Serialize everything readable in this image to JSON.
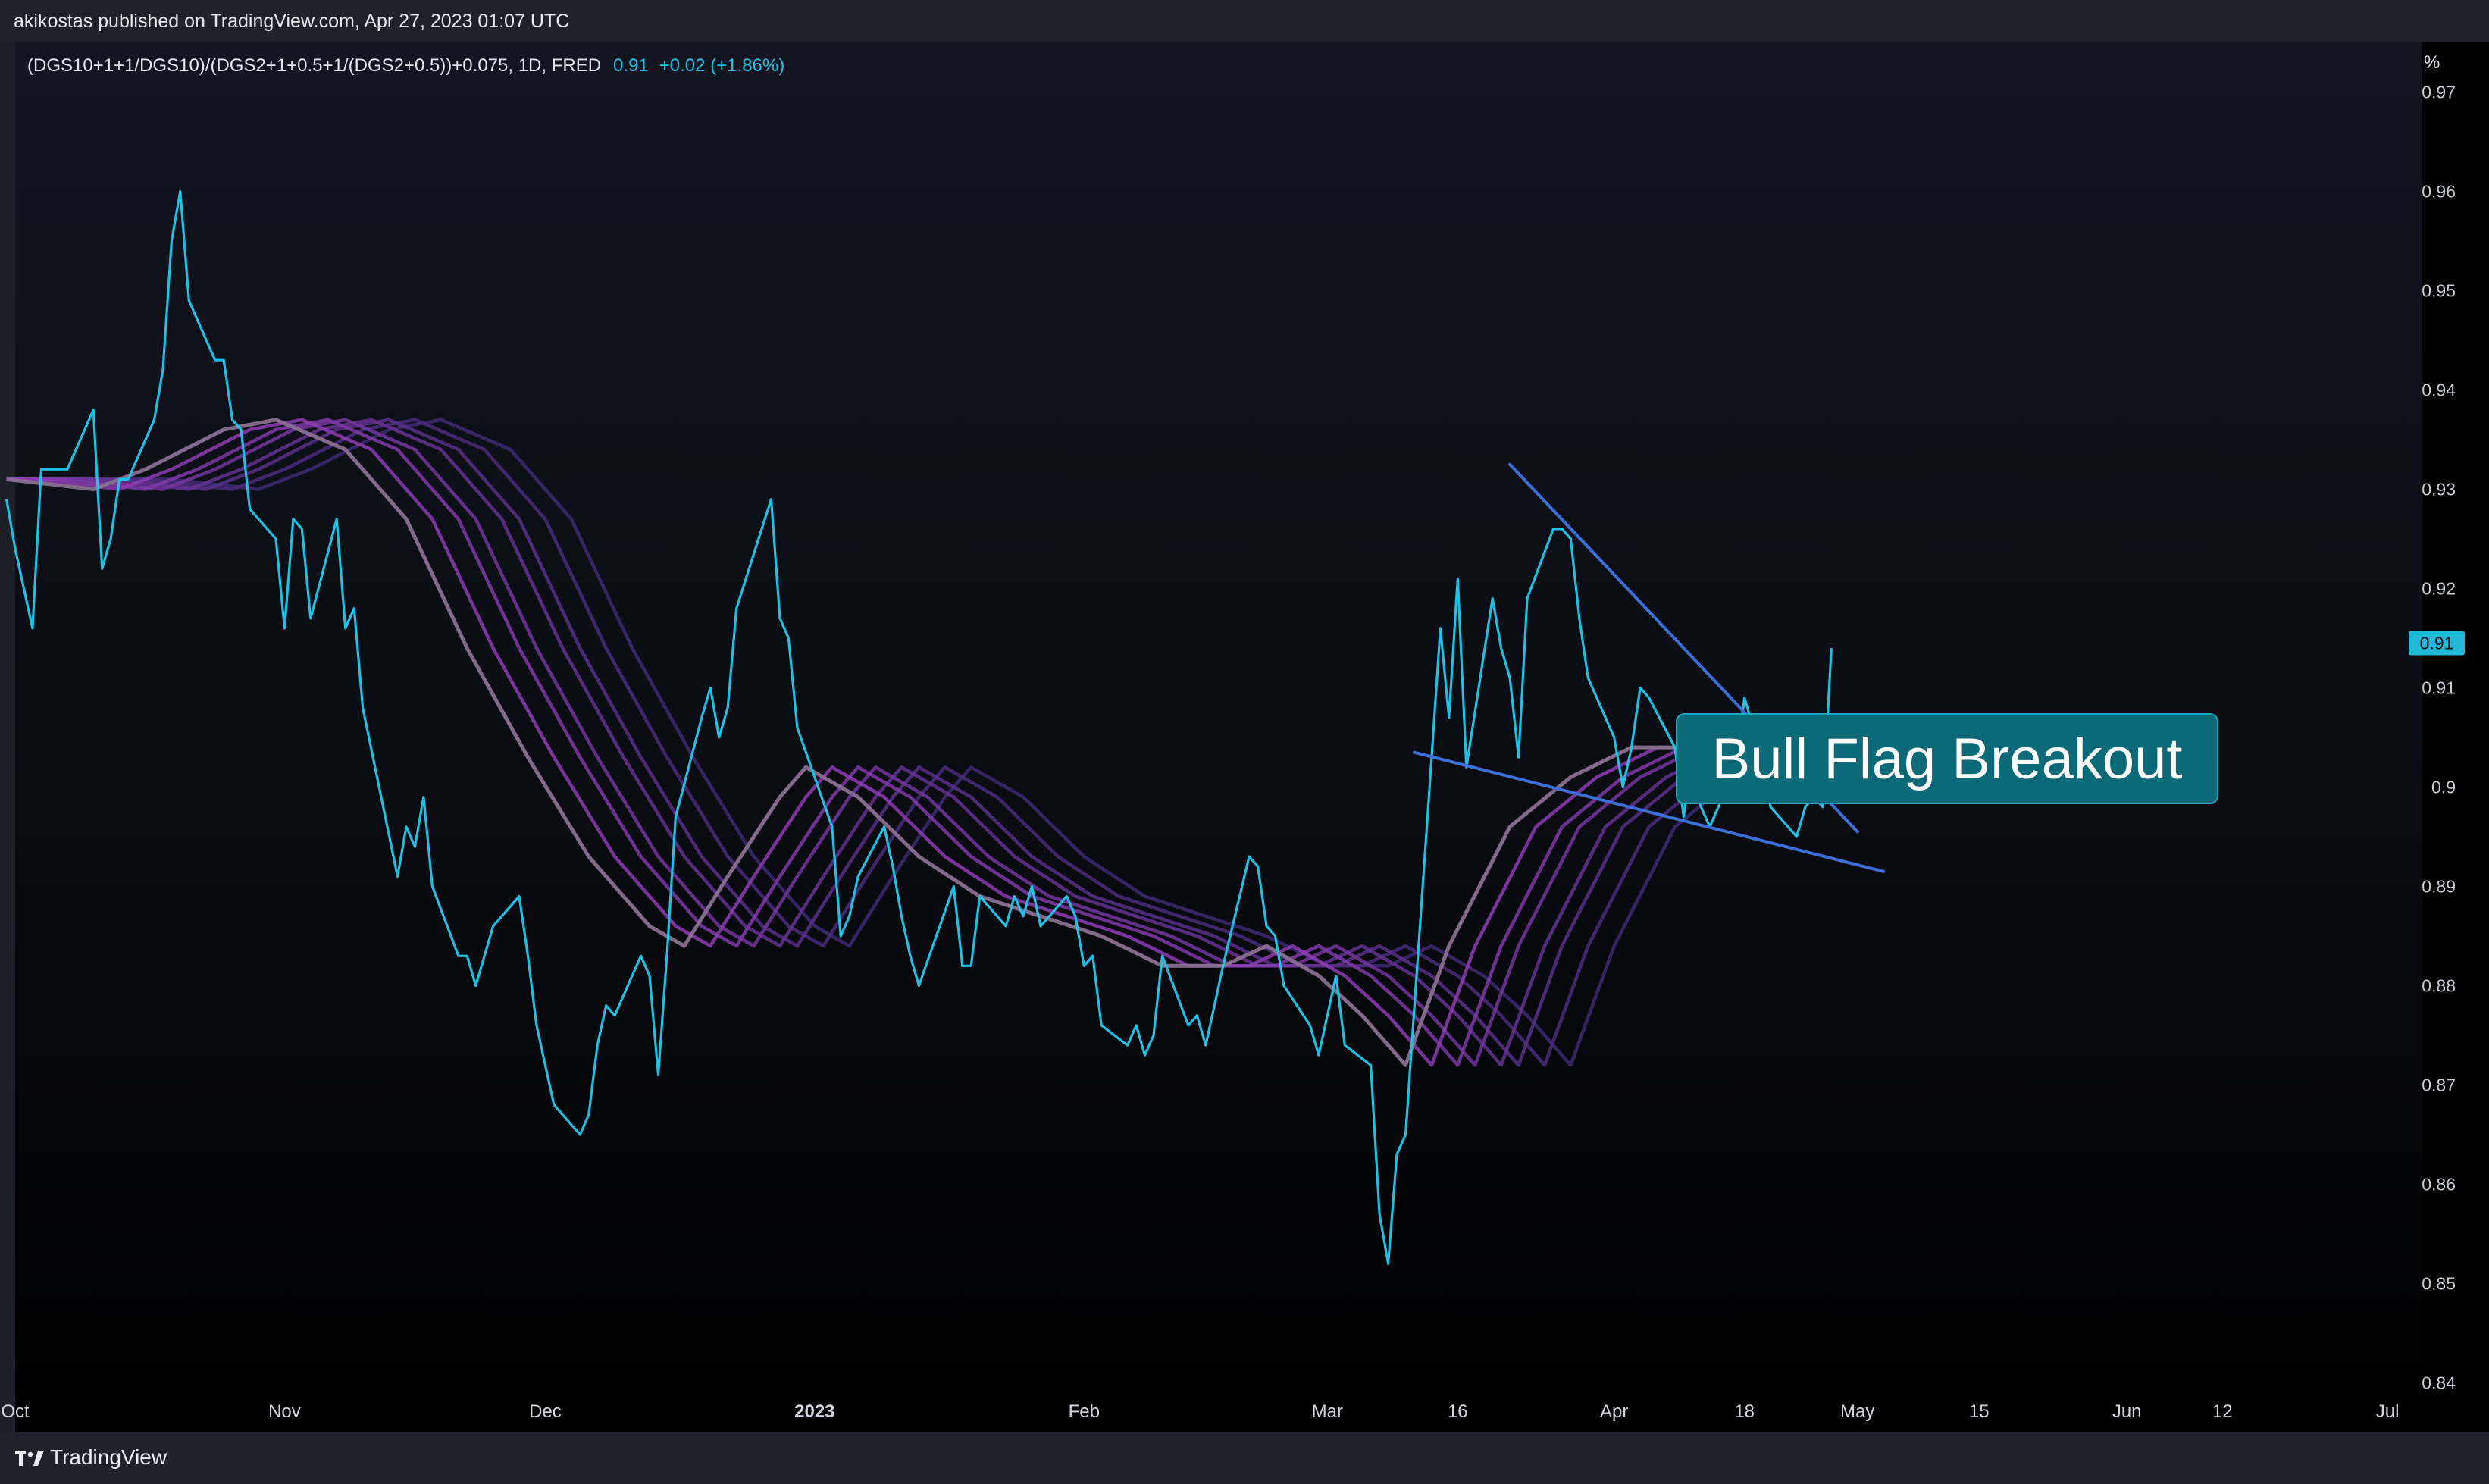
{
  "header": {
    "published": "akikostas published on TradingView.com, Apr 27, 2023 01:07 UTC"
  },
  "footer": {
    "brand": "TradingView",
    "logo_icon": "tradingview-logo-icon"
  },
  "colors": {
    "price_line": "#1ec1e6",
    "ribbon_outer": "#3d2a72",
    "ribbon_inner": "#9b3fbf",
    "ribbon_core": "#8a7090",
    "trendline": "#3d6fd8",
    "annotation_bg": "#0b6978",
    "annotation_border": "#1aa7bd",
    "price_badge": "#22b8d8"
  },
  "chart_data": {
    "type": "line",
    "symbol_line": {
      "symbol": "(DGS10+1+1/DGS10)/(DGS2+1+0.5+1/(DGS2+0.5))+0.075, 1D, FRED",
      "last": "0.91",
      "change": "+0.02 (+1.86%)"
    },
    "y_unit": "%",
    "ylim": [
      0.835,
      0.975
    ],
    "y_ticks": [
      "0.97",
      "0.96",
      "0.95",
      "0.94",
      "0.93",
      "0.92",
      "0.91",
      "0.9",
      "0.89",
      "0.88",
      "0.87",
      "0.86",
      "0.85",
      "0.84"
    ],
    "y_tick_values": [
      0.97,
      0.96,
      0.95,
      0.94,
      0.93,
      0.92,
      0.91,
      0.9,
      0.89,
      0.88,
      0.87,
      0.86,
      0.85,
      0.84
    ],
    "last_value_label": "0.91",
    "last_value": 0.9145,
    "x_range": [
      "2022-10-01",
      "2023-07-05"
    ],
    "x_ticks": [
      {
        "label": "Oct",
        "date": "2022-10-01",
        "bold": false
      },
      {
        "label": "Nov",
        "date": "2022-11-01",
        "bold": false
      },
      {
        "label": "Dec",
        "date": "2022-12-01",
        "bold": false
      },
      {
        "label": "2023",
        "date": "2023-01-01",
        "bold": true
      },
      {
        "label": "Feb",
        "date": "2023-02-01",
        "bold": false
      },
      {
        "label": "Mar",
        "date": "2023-03-01",
        "bold": false
      },
      {
        "label": "16",
        "date": "2023-03-16",
        "bold": false
      },
      {
        "label": "Apr",
        "date": "2023-04-03",
        "bold": false
      },
      {
        "label": "18",
        "date": "2023-04-18",
        "bold": false
      },
      {
        "label": "May",
        "date": "2023-05-01",
        "bold": false
      },
      {
        "label": "15",
        "date": "2023-05-15",
        "bold": false
      },
      {
        "label": "Jun",
        "date": "2023-06-01",
        "bold": false
      },
      {
        "label": "12",
        "date": "2023-06-12",
        "bold": false
      },
      {
        "label": "Jul",
        "date": "2023-07-01",
        "bold": false
      }
    ],
    "price_series": [
      [
        "2022-09-30",
        0.929
      ],
      [
        "2022-10-01",
        0.924
      ],
      [
        "2022-10-03",
        0.916
      ],
      [
        "2022-10-04",
        0.932
      ],
      [
        "2022-10-06",
        0.932
      ],
      [
        "2022-10-07",
        0.932
      ],
      [
        "2022-10-10",
        0.938
      ],
      [
        "2022-10-11",
        0.922
      ],
      [
        "2022-10-12",
        0.925
      ],
      [
        "2022-10-13",
        0.931
      ],
      [
        "2022-10-14",
        0.931
      ],
      [
        "2022-10-17",
        0.937
      ],
      [
        "2022-10-18",
        0.942
      ],
      [
        "2022-10-19",
        0.955
      ],
      [
        "2022-10-20",
        0.96
      ],
      [
        "2022-10-21",
        0.949
      ],
      [
        "2022-10-24",
        0.943
      ],
      [
        "2022-10-25",
        0.943
      ],
      [
        "2022-10-26",
        0.937
      ],
      [
        "2022-10-27",
        0.936
      ],
      [
        "2022-10-28",
        0.928
      ],
      [
        "2022-10-31",
        0.925
      ],
      [
        "2022-11-01",
        0.916
      ],
      [
        "2022-11-02",
        0.927
      ],
      [
        "2022-11-03",
        0.926
      ],
      [
        "2022-11-04",
        0.917
      ],
      [
        "2022-11-07",
        0.927
      ],
      [
        "2022-11-08",
        0.916
      ],
      [
        "2022-11-09",
        0.918
      ],
      [
        "2022-11-10",
        0.908
      ],
      [
        "2022-11-14",
        0.891
      ],
      [
        "2022-11-15",
        0.896
      ],
      [
        "2022-11-16",
        0.894
      ],
      [
        "2022-11-17",
        0.899
      ],
      [
        "2022-11-18",
        0.89
      ],
      [
        "2022-11-21",
        0.883
      ],
      [
        "2022-11-22",
        0.883
      ],
      [
        "2022-11-23",
        0.88
      ],
      [
        "2022-11-25",
        0.886
      ],
      [
        "2022-11-28",
        0.889
      ],
      [
        "2022-11-29",
        0.883
      ],
      [
        "2022-11-30",
        0.876
      ],
      [
        "2022-12-01",
        0.872
      ],
      [
        "2022-12-02",
        0.868
      ],
      [
        "2022-12-05",
        0.865
      ],
      [
        "2022-12-06",
        0.867
      ],
      [
        "2022-12-07",
        0.874
      ],
      [
        "2022-12-08",
        0.878
      ],
      [
        "2022-12-09",
        0.877
      ],
      [
        "2022-12-12",
        0.883
      ],
      [
        "2022-12-13",
        0.881
      ],
      [
        "2022-12-14",
        0.871
      ],
      [
        "2022-12-15",
        0.883
      ],
      [
        "2022-12-16",
        0.897
      ],
      [
        "2022-12-19",
        0.907
      ],
      [
        "2022-12-20",
        0.91
      ],
      [
        "2022-12-21",
        0.905
      ],
      [
        "2022-12-22",
        0.908
      ],
      [
        "2022-12-23",
        0.918
      ],
      [
        "2022-12-27",
        0.929
      ],
      [
        "2022-12-28",
        0.917
      ],
      [
        "2022-12-29",
        0.915
      ],
      [
        "2022-12-30",
        0.906
      ],
      [
        "2023-01-03",
        0.896
      ],
      [
        "2023-01-04",
        0.885
      ],
      [
        "2023-01-05",
        0.887
      ],
      [
        "2023-01-06",
        0.891
      ],
      [
        "2023-01-09",
        0.896
      ],
      [
        "2023-01-10",
        0.892
      ],
      [
        "2023-01-11",
        0.887
      ],
      [
        "2023-01-12",
        0.883
      ],
      [
        "2023-01-13",
        0.88
      ],
      [
        "2023-01-17",
        0.89
      ],
      [
        "2023-01-18",
        0.882
      ],
      [
        "2023-01-19",
        0.882
      ],
      [
        "2023-01-20",
        0.889
      ],
      [
        "2023-01-23",
        0.886
      ],
      [
        "2023-01-24",
        0.889
      ],
      [
        "2023-01-25",
        0.887
      ],
      [
        "2023-01-26",
        0.89
      ],
      [
        "2023-01-27",
        0.886
      ],
      [
        "2023-01-30",
        0.889
      ],
      [
        "2023-01-31",
        0.887
      ],
      [
        "2023-02-01",
        0.882
      ],
      [
        "2023-02-02",
        0.883
      ],
      [
        "2023-02-03",
        0.876
      ],
      [
        "2023-02-06",
        0.874
      ],
      [
        "2023-02-07",
        0.876
      ],
      [
        "2023-02-08",
        0.873
      ],
      [
        "2023-02-09",
        0.875
      ],
      [
        "2023-02-10",
        0.883
      ],
      [
        "2023-02-13",
        0.876
      ],
      [
        "2023-02-14",
        0.877
      ],
      [
        "2023-02-15",
        0.874
      ],
      [
        "2023-02-16",
        0.878
      ],
      [
        "2023-02-17",
        0.882
      ],
      [
        "2023-02-20",
        0.893
      ],
      [
        "2023-02-21",
        0.892
      ],
      [
        "2023-02-22",
        0.886
      ],
      [
        "2023-02-23",
        0.885
      ],
      [
        "2023-02-24",
        0.88
      ],
      [
        "2023-02-27",
        0.876
      ],
      [
        "2023-02-28",
        0.873
      ],
      [
        "2023-03-01",
        0.877
      ],
      [
        "2023-03-02",
        0.881
      ],
      [
        "2023-03-03",
        0.874
      ],
      [
        "2023-03-06",
        0.872
      ],
      [
        "2023-03-07",
        0.857
      ],
      [
        "2023-03-08",
        0.852
      ],
      [
        "2023-03-09",
        0.863
      ],
      [
        "2023-03-10",
        0.865
      ],
      [
        "2023-03-13",
        0.903
      ],
      [
        "2023-03-14",
        0.916
      ],
      [
        "2023-03-15",
        0.907
      ],
      [
        "2023-03-16",
        0.921
      ],
      [
        "2023-03-17",
        0.902
      ],
      [
        "2023-03-20",
        0.919
      ],
      [
        "2023-03-21",
        0.914
      ],
      [
        "2023-03-22",
        0.911
      ],
      [
        "2023-03-23",
        0.903
      ],
      [
        "2023-03-24",
        0.919
      ],
      [
        "2023-03-27",
        0.926
      ],
      [
        "2023-03-28",
        0.926
      ],
      [
        "2023-03-29",
        0.925
      ],
      [
        "2023-03-30",
        0.917
      ],
      [
        "2023-03-31",
        0.911
      ],
      [
        "2023-04-03",
        0.905
      ],
      [
        "2023-04-04",
        0.9
      ],
      [
        "2023-04-05",
        0.904
      ],
      [
        "2023-04-06",
        0.91
      ],
      [
        "2023-04-07",
        0.909
      ],
      [
        "2023-04-10",
        0.904
      ],
      [
        "2023-04-11",
        0.897
      ],
      [
        "2023-04-12",
        0.903
      ],
      [
        "2023-04-13",
        0.898
      ],
      [
        "2023-04-14",
        0.896
      ],
      [
        "2023-04-17",
        0.902
      ],
      [
        "2023-04-18",
        0.909
      ],
      [
        "2023-04-19",
        0.906
      ],
      [
        "2023-04-20",
        0.903
      ],
      [
        "2023-04-21",
        0.898
      ],
      [
        "2023-04-24",
        0.895
      ],
      [
        "2023-04-25",
        0.898
      ],
      [
        "2023-04-26",
        0.899
      ],
      [
        "2023-04-27",
        0.898
      ],
      [
        "2023-04-28",
        0.914
      ]
    ],
    "ribbon": {
      "band_count": 8,
      "core": [
        [
          "2022-09-30",
          0.931
        ],
        [
          "2022-10-10",
          0.93
        ],
        [
          "2022-10-16",
          0.932
        ],
        [
          "2022-10-25",
          0.936
        ],
        [
          "2022-10-31",
          0.937
        ],
        [
          "2022-11-08",
          0.934
        ],
        [
          "2022-11-15",
          0.927
        ],
        [
          "2022-11-22",
          0.914
        ],
        [
          "2022-11-29",
          0.903
        ],
        [
          "2022-12-06",
          0.893
        ],
        [
          "2022-12-13",
          0.886
        ],
        [
          "2022-12-17",
          0.884
        ],
        [
          "2022-12-22",
          0.891
        ],
        [
          "2022-12-28",
          0.899
        ],
        [
          "2022-12-31",
          0.902
        ],
        [
          "2023-01-06",
          0.899
        ],
        [
          "2023-01-13",
          0.893
        ],
        [
          "2023-01-20",
          0.889
        ],
        [
          "2023-01-27",
          0.887
        ],
        [
          "2023-02-03",
          0.885
        ],
        [
          "2023-02-10",
          0.882
        ],
        [
          "2023-02-17",
          0.882
        ],
        [
          "2023-02-22",
          0.884
        ],
        [
          "2023-02-28",
          0.881
        ],
        [
          "2023-03-05",
          0.877
        ],
        [
          "2023-03-10",
          0.872
        ],
        [
          "2023-03-15",
          0.884
        ],
        [
          "2023-03-22",
          0.896
        ],
        [
          "2023-03-29",
          0.901
        ],
        [
          "2023-04-05",
          0.904
        ],
        [
          "2023-04-12",
          0.904
        ],
        [
          "2023-04-18",
          0.903
        ],
        [
          "2023-04-24",
          0.902
        ],
        [
          "2023-04-28",
          0.902
        ]
      ]
    },
    "trendlines": [
      {
        "name": "upper",
        "from": [
          "2023-03-22",
          0.9325
        ],
        "to": [
          "2023-05-01",
          0.8955
        ]
      },
      {
        "name": "lower",
        "from": [
          "2023-03-11",
          0.9035
        ],
        "to": [
          "2023-05-04",
          0.8915
        ]
      }
    ],
    "annotation": {
      "text": "Bull Flag Breakout",
      "pointer": [
        "2023-04-28",
        0.901
      ]
    }
  }
}
